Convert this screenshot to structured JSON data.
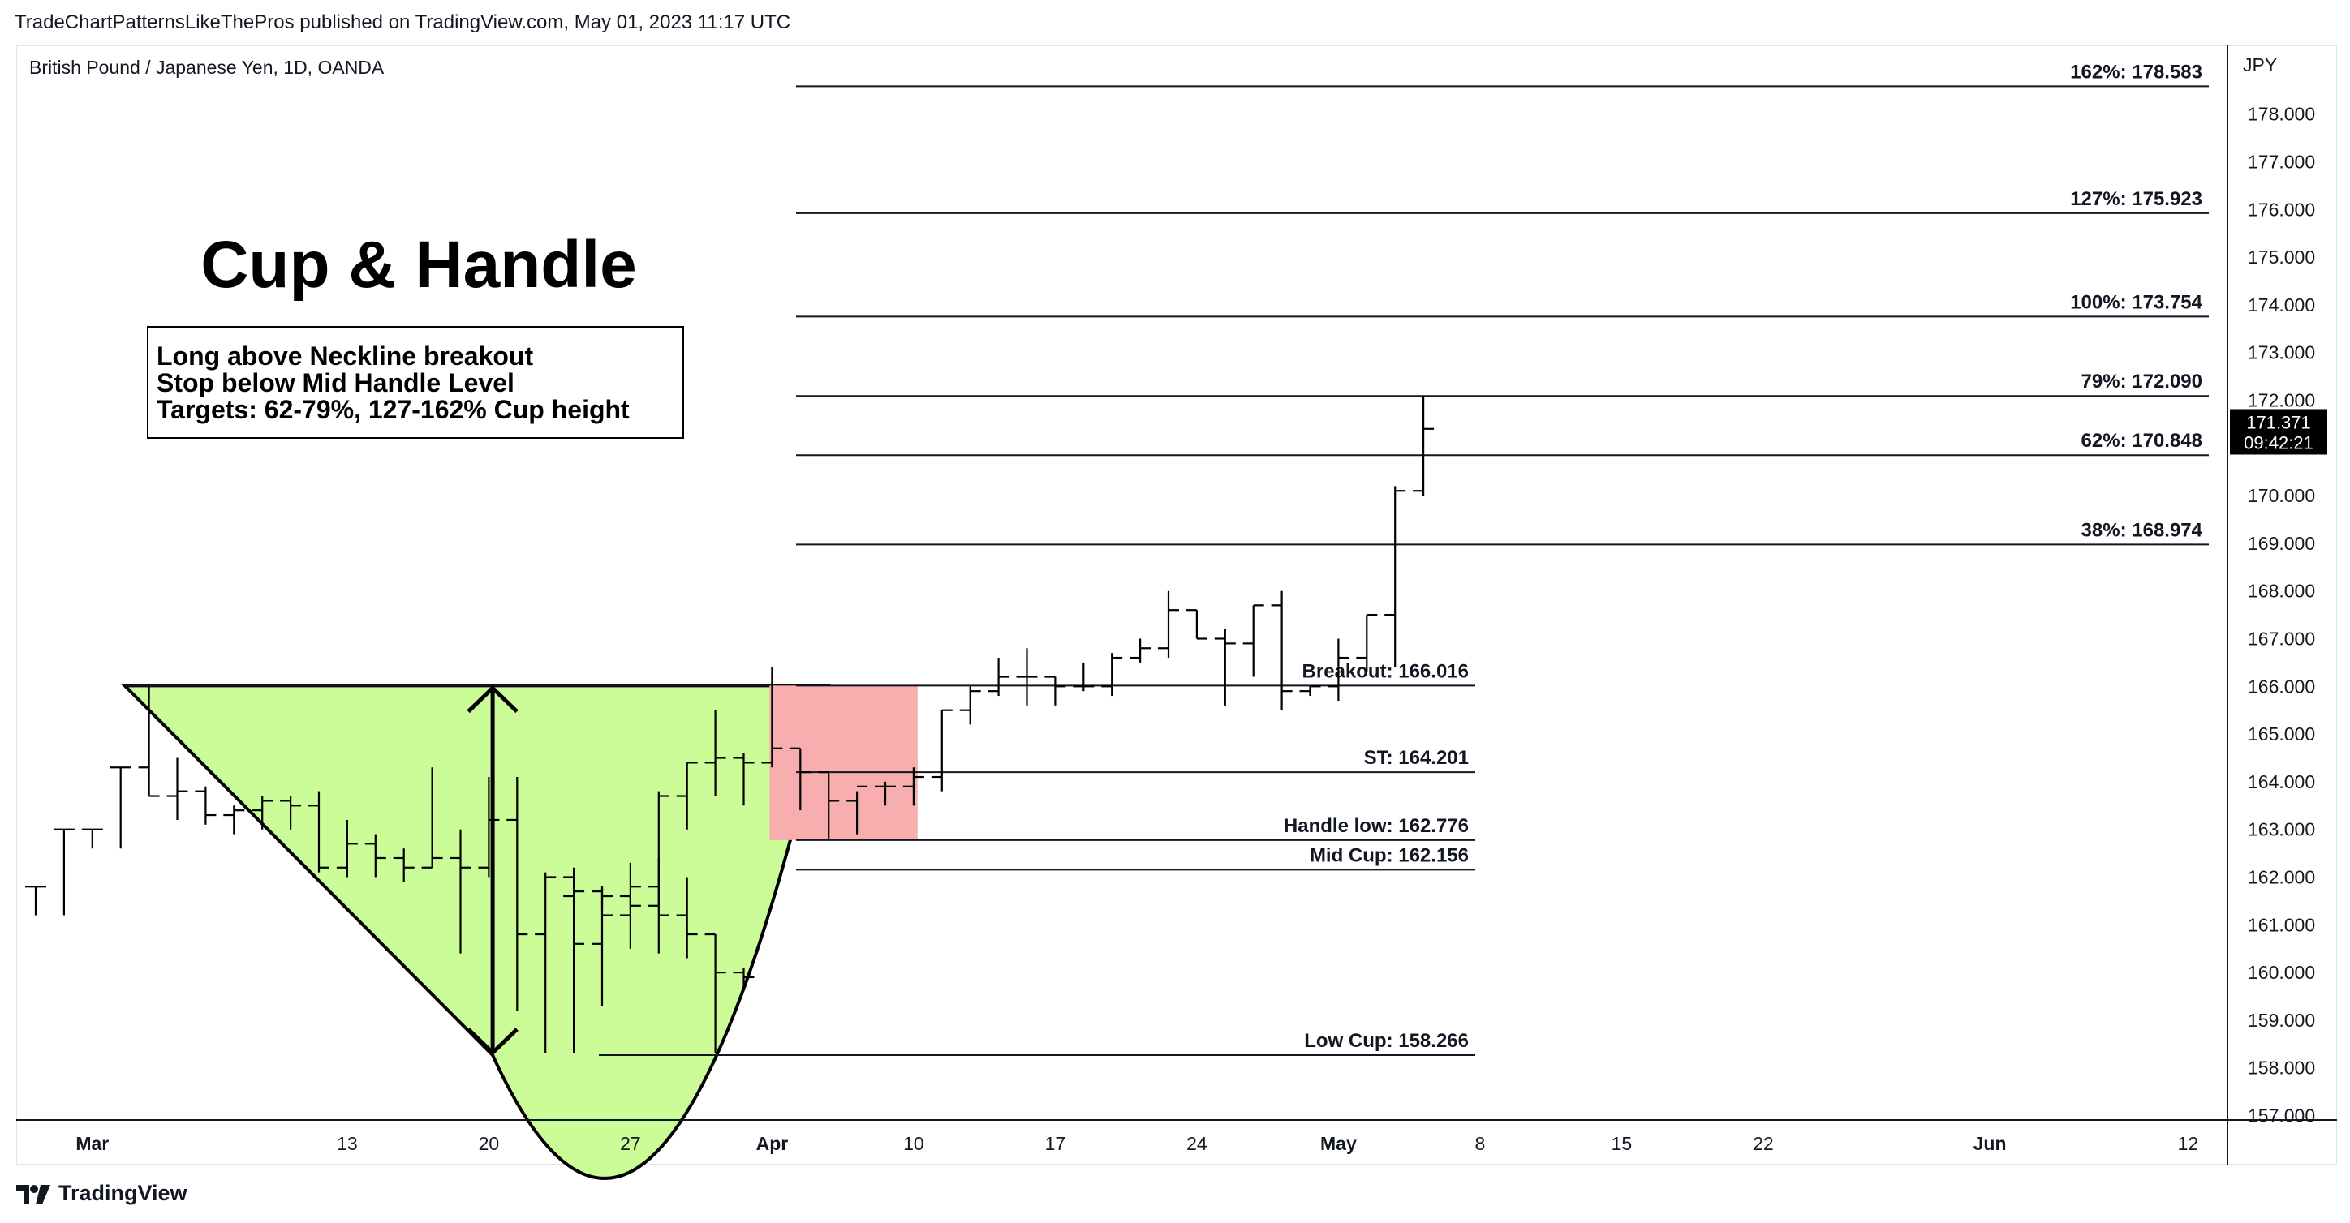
{
  "header": {
    "publisher_line": "TradeChartPatternsLikeThePros published on TradingView.com, May 01, 2023 11:17 UTC"
  },
  "symbol": {
    "description": "British Pound / Japanese Yen, 1D, OANDA"
  },
  "branding": {
    "name": "TradingView"
  },
  "colors": {
    "cup_fill": "#ccfc98",
    "handle_fill": "#f8aeae",
    "price_tag_bg": "#000000",
    "line": "#131722"
  },
  "annotations": {
    "title": "Cup & Handle",
    "note_lines": [
      "Long above Neckline breakout",
      "Stop below Mid Handle Level",
      "Targets: 62-79%, 127-162% Cup height"
    ]
  },
  "price_tag": {
    "price": "171.371",
    "countdown": "09:42:21"
  },
  "chart_data": {
    "type": "ohlc_bar",
    "symbol": "GBPJPY",
    "timeframe": "1D",
    "currency_label": "JPY",
    "y_range": [
      157.0,
      179.0
    ],
    "y_ticks": [
      "157.000",
      "158.000",
      "159.000",
      "160.000",
      "161.000",
      "162.000",
      "163.000",
      "164.000",
      "165.000",
      "166.000",
      "167.000",
      "168.000",
      "169.000",
      "170.000",
      "171.000",
      "172.000",
      "173.000",
      "174.000",
      "175.000",
      "176.000",
      "177.000",
      "178.000"
    ],
    "x_ticks": [
      {
        "label": "Mar",
        "bold": true,
        "bar": 2
      },
      {
        "label": "13",
        "bold": false,
        "bar": 11
      },
      {
        "label": "20",
        "bold": false,
        "bar": 16
      },
      {
        "label": "27",
        "bold": false,
        "bar": 21
      },
      {
        "label": "Apr",
        "bold": true,
        "bar": 26
      },
      {
        "label": "10",
        "bold": false,
        "bar": 31
      },
      {
        "label": "17",
        "bold": false,
        "bar": 36
      },
      {
        "label": "24",
        "bold": false,
        "bar": 41
      },
      {
        "label": "May",
        "bold": true,
        "bar": 46
      },
      {
        "label": "8",
        "bold": false,
        "bar": 51
      },
      {
        "label": "15",
        "bold": false,
        "bar": 56
      },
      {
        "label": "22",
        "bold": false,
        "bar": 61
      },
      {
        "label": "Jun",
        "bold": true,
        "bar": 69
      },
      {
        "label": "12",
        "bold": false,
        "bar": 76
      }
    ],
    "bars": [
      {
        "o": 161.8,
        "h": 161.8,
        "l": 161.2,
        "c": 161.8
      },
      {
        "o": 163.0,
        "h": 163.0,
        "l": 161.2,
        "c": 163.0
      },
      {
        "o": 163.0,
        "h": 163.0,
        "l": 162.6,
        "c": 163.0
      },
      {
        "o": 164.3,
        "h": 164.3,
        "l": 162.6,
        "c": 164.3
      },
      {
        "o": 164.3,
        "h": 166.0,
        "l": 163.7,
        "c": 163.7
      },
      {
        "o": 163.7,
        "h": 164.5,
        "l": 163.2,
        "c": 163.8
      },
      {
        "o": 163.8,
        "h": 163.9,
        "l": 163.1,
        "c": 163.3
      },
      {
        "o": 163.3,
        "h": 163.5,
        "l": 162.9,
        "c": 163.4
      },
      {
        "o": 163.4,
        "h": 163.7,
        "l": 163.0,
        "c": 163.6
      },
      {
        "o": 163.6,
        "h": 163.7,
        "l": 163.0,
        "c": 163.5
      },
      {
        "o": 163.5,
        "h": 163.8,
        "l": 162.1,
        "c": 162.2
      },
      {
        "o": 162.2,
        "h": 163.2,
        "l": 162.0,
        "c": 162.7
      },
      {
        "o": 162.7,
        "h": 162.9,
        "l": 162.0,
        "c": 162.4
      },
      {
        "o": 162.4,
        "h": 162.6,
        "l": 161.9,
        "c": 162.2
      },
      {
        "o": 162.2,
        "h": 164.3,
        "l": 162.2,
        "c": 162.4
      },
      {
        "o": 162.4,
        "h": 163.0,
        "l": 160.4,
        "c": 162.2
      },
      {
        "o": 162.2,
        "h": 164.1,
        "l": 162.0,
        "c": 163.2
      },
      {
        "o": 163.2,
        "h": 164.1,
        "l": 159.2,
        "c": 160.8
      },
      {
        "o": 160.8,
        "h": 162.1,
        "l": 158.3,
        "c": 162.0
      },
      {
        "o": 162.0,
        "h": 162.2,
        "l": 158.3,
        "c": 160.6
      },
      {
        "o": 160.6,
        "h": 161.8,
        "l": 159.3,
        "c": 161.2
      },
      {
        "o": 161.2,
        "h": 162.3,
        "l": 160.5,
        "c": 161.8
      },
      {
        "o": 161.8,
        "h": 162.4,
        "l": 160.4,
        "c": 161.2
      },
      {
        "o": 161.2,
        "h": 162.0,
        "l": 160.3,
        "c": 160.8
      },
      {
        "o": 160.8,
        "h": 160.8,
        "l": 158.3,
        "c": 160.0
      },
      {
        "o": 160.0,
        "h": 160.1,
        "l": 159.7,
        "c": 159.9
      }
    ],
    "bars_b": [
      {
        "o": 161.6,
        "h": 161.8,
        "l": 160.2,
        "c": 161.7
      },
      {
        "o": 161.7,
        "h": 161.8,
        "l": 161.3,
        "c": 161.6
      },
      {
        "o": 161.6,
        "h": 161.6,
        "l": 161.3,
        "c": 161.4
      },
      {
        "o": 161.4,
        "h": 163.8,
        "l": 161.4,
        "c": 163.7
      },
      {
        "o": 163.7,
        "h": 164.4,
        "l": 163.0,
        "c": 164.4
      },
      {
        "o": 164.4,
        "h": 165.5,
        "l": 163.7,
        "c": 164.5
      },
      {
        "o": 164.5,
        "h": 164.6,
        "l": 163.5,
        "c": 164.4
      },
      {
        "o": 164.4,
        "h": 166.4,
        "l": 164.3,
        "c": 164.7
      }
    ],
    "bars_c": [
      {
        "o": 164.7,
        "h": 164.7,
        "l": 163.4,
        "c": 164.2
      },
      {
        "o": 164.2,
        "h": 164.2,
        "l": 162.8,
        "c": 163.6
      },
      {
        "o": 163.6,
        "h": 163.8,
        "l": 162.9,
        "c": 163.9
      },
      {
        "o": 163.9,
        "h": 164.0,
        "l": 163.5,
        "c": 163.9
      },
      {
        "o": 163.9,
        "h": 164.3,
        "l": 163.5,
        "c": 164.1
      },
      {
        "o": 164.1,
        "h": 165.5,
        "l": 163.8,
        "c": 165.5
      },
      {
        "o": 165.5,
        "h": 166.0,
        "l": 165.2,
        "c": 165.9
      },
      {
        "o": 165.9,
        "h": 166.6,
        "l": 165.8,
        "c": 166.2
      },
      {
        "o": 166.2,
        "h": 166.8,
        "l": 165.6,
        "c": 166.2
      },
      {
        "o": 166.2,
        "h": 166.2,
        "l": 165.6,
        "c": 166.0
      },
      {
        "o": 166.0,
        "h": 166.5,
        "l": 165.9,
        "c": 166.0
      },
      {
        "o": 166.0,
        "h": 166.7,
        "l": 165.8,
        "c": 166.6
      },
      {
        "o": 166.6,
        "h": 167.0,
        "l": 166.5,
        "c": 166.8
      },
      {
        "o": 166.8,
        "h": 168.0,
        "l": 166.6,
        "c": 167.6
      },
      {
        "o": 167.6,
        "h": 167.6,
        "l": 167.0,
        "c": 167.0
      },
      {
        "o": 167.0,
        "h": 167.2,
        "l": 165.6,
        "c": 166.9
      },
      {
        "o": 166.9,
        "h": 167.7,
        "l": 166.2,
        "c": 167.7
      },
      {
        "o": 167.7,
        "h": 168.0,
        "l": 165.5,
        "c": 165.9
      },
      {
        "o": 165.9,
        "h": 166.0,
        "l": 165.8,
        "c": 166.0
      },
      {
        "o": 166.0,
        "h": 167.0,
        "l": 165.7,
        "c": 166.6
      },
      {
        "o": 166.6,
        "h": 167.5,
        "l": 166.3,
        "c": 167.5
      },
      {
        "o": 167.5,
        "h": 170.2,
        "l": 166.4,
        "c": 170.1
      },
      {
        "o": 170.1,
        "h": 172.1,
        "l": 170.0,
        "c": 171.4
      }
    ],
    "levels_long": [
      {
        "label": "162%: 178.583",
        "price": 178.583
      },
      {
        "label": "127%: 175.923",
        "price": 175.923
      },
      {
        "label": "100%: 173.754",
        "price": 173.754
      },
      {
        "label": "79%: 172.090",
        "price": 172.09
      },
      {
        "label": "62%: 170.848",
        "price": 170.848
      },
      {
        "label": "38%: 168.974",
        "price": 168.974
      }
    ],
    "levels_short": [
      {
        "label": "Breakout: 166.016",
        "price": 166.016
      },
      {
        "label": "ST: 164.201",
        "price": 164.201
      },
      {
        "label": "Handle low: 162.776",
        "price": 162.776
      },
      {
        "label": "Mid Cup: 162.156",
        "price": 162.156
      },
      {
        "label": "Low Cup: 158.266",
        "price": 158.266
      }
    ],
    "cup": {
      "rim_price": 166.016,
      "bottom_price": 158.266,
      "start_bar": 4,
      "bottom_bar": 19,
      "end_bar": 27
    },
    "handle": {
      "start_bar": 27,
      "end_bar": 32,
      "top": 166.016,
      "bottom": 162.776
    }
  }
}
